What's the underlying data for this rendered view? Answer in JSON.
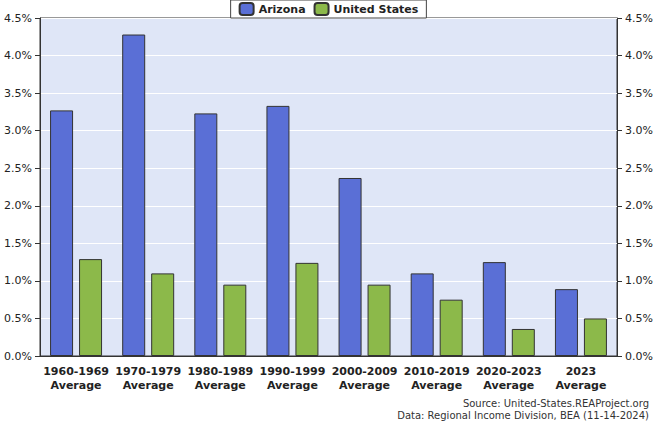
{
  "chart_data": {
    "type": "bar",
    "categories": [
      "1960-1969 Average",
      "1970-1979 Average",
      "1980-1989 Average",
      "1990-1999 Average",
      "2000-2009 Average",
      "2010-2019 Average",
      "2020-2023 Average",
      "2023 Average"
    ],
    "series": [
      {
        "name": "Arizona",
        "color": "#5a6fd6",
        "values": [
          3.27,
          4.28,
          3.23,
          3.33,
          2.37,
          1.1,
          1.25,
          0.89
        ]
      },
      {
        "name": "United States",
        "color": "#8cb94a",
        "values": [
          1.29,
          1.1,
          0.95,
          1.24,
          0.95,
          0.75,
          0.36,
          0.5
        ]
      }
    ],
    "ylim": [
      0,
      4.5
    ],
    "yticks": [
      {
        "value": 0,
        "label": "0.0%"
      },
      {
        "value": 0.5,
        "label": "0.5%"
      },
      {
        "value": 1,
        "label": "1.0%"
      },
      {
        "value": 1.5,
        "label": "1.5%"
      },
      {
        "value": 2,
        "label": "2.0%"
      },
      {
        "value": 2.5,
        "label": "2.5%"
      },
      {
        "value": 3,
        "label": "3.0%"
      },
      {
        "value": 3.5,
        "label": "3.5%"
      },
      {
        "value": 4,
        "label": "4.0%"
      },
      {
        "value": 4.5,
        "label": "4.5%"
      }
    ],
    "y2lim": [
      0,
      4.5
    ],
    "y2ticks": [
      {
        "value": 0,
        "label": "0.0%"
      },
      {
        "value": 0.5,
        "label": "0.5%"
      },
      {
        "value": 1,
        "label": "1.0%"
      },
      {
        "value": 1.5,
        "label": "1.5%"
      },
      {
        "value": 2,
        "label": "2.0%"
      },
      {
        "value": 2.5,
        "label": "2.5%"
      },
      {
        "value": 3,
        "label": "3.0%"
      },
      {
        "value": 3.5,
        "label": "3.5%"
      },
      {
        "value": 4,
        "label": "4.0%"
      },
      {
        "value": 4.5,
        "label": "4.5%"
      }
    ],
    "grid": true,
    "legend": "top",
    "annotations": [
      "Source: United-States.REAProject.org",
      "Data: Regional Income Division, BEA (11-14-2024)"
    ]
  }
}
